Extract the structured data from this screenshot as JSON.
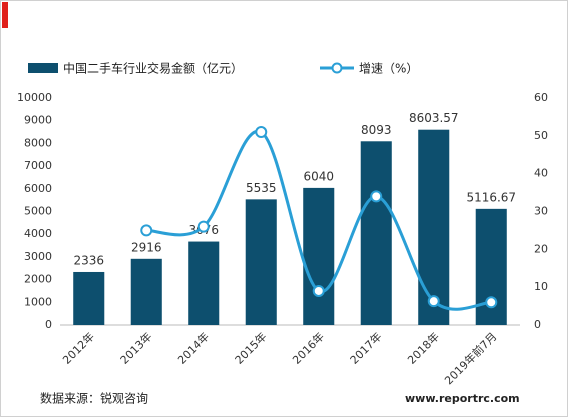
{
  "chart_data": {
    "type": "bar",
    "categories": [
      "2012年",
      "2013年",
      "2014年",
      "2015年",
      "2016年",
      "2017年",
      "2018年",
      "2019年前7月"
    ],
    "series": [
      {
        "name": "中国二手车行业交易金额（亿元）",
        "type": "bar",
        "color": "#0d4f6e",
        "values": [
          2336,
          2916,
          3676,
          5535,
          6040,
          8093,
          8603.57,
          5116.67
        ]
      },
      {
        "name": "增速（%）",
        "type": "line",
        "axis": "y2",
        "color": "#2a9fd6",
        "values": [
          null,
          25,
          26,
          51,
          9,
          34,
          6.3,
          6
        ]
      }
    ],
    "ylim": [
      0,
      10000
    ],
    "yticks": [
      0,
      1000,
      2000,
      3000,
      4000,
      5000,
      6000,
      7000,
      8000,
      9000,
      10000
    ],
    "y2lim": [
      0,
      60
    ],
    "y2ticks": [
      0,
      10,
      20,
      30,
      40,
      50,
      60
    ],
    "source": "数据来源：锐观咨询",
    "watermark": "www.reportrc.com"
  }
}
